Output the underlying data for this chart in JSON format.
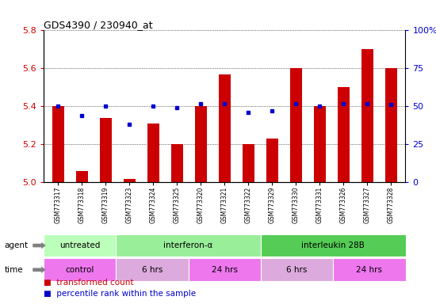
{
  "title": "GDS4390 / 230940_at",
  "samples": [
    "GSM773317",
    "GSM773318",
    "GSM773319",
    "GSM773323",
    "GSM773324",
    "GSM773325",
    "GSM773320",
    "GSM773321",
    "GSM773322",
    "GSM773329",
    "GSM773330",
    "GSM773331",
    "GSM773326",
    "GSM773327",
    "GSM773328"
  ],
  "transformed_count": [
    5.4,
    5.06,
    5.34,
    5.02,
    5.31,
    5.2,
    5.4,
    5.57,
    5.2,
    5.23,
    5.6,
    5.4,
    5.5,
    5.7,
    5.6
  ],
  "percentile_rank": [
    50,
    44,
    50,
    38,
    50,
    49,
    52,
    52,
    46,
    47,
    52,
    50,
    52,
    52,
    51
  ],
  "ylim_left": [
    5.0,
    5.8
  ],
  "ylim_right": [
    0,
    100
  ],
  "yticks_left": [
    5.0,
    5.2,
    5.4,
    5.6,
    5.8
  ],
  "yticks_right": [
    0,
    25,
    50,
    75,
    100
  ],
  "bar_color": "#CC0000",
  "dot_color": "#0000CC",
  "bar_width": 0.5,
  "agent_groups": [
    {
      "label": "untreated",
      "start": 0,
      "end": 3,
      "color": "#bbffbb"
    },
    {
      "label": "interferon-α",
      "start": 3,
      "end": 9,
      "color": "#99ee99"
    },
    {
      "label": "interleukin 28B",
      "start": 9,
      "end": 15,
      "color": "#55cc55"
    }
  ],
  "time_groups": [
    {
      "label": "control",
      "start": 0,
      "end": 3,
      "color": "#ee77ee"
    },
    {
      "label": "6 hrs",
      "start": 3,
      "end": 6,
      "color": "#ddaadd"
    },
    {
      "label": "24 hrs",
      "start": 6,
      "end": 9,
      "color": "#ee77ee"
    },
    {
      "label": "6 hrs",
      "start": 9,
      "end": 12,
      "color": "#ddaadd"
    },
    {
      "label": "24 hrs",
      "start": 12,
      "end": 15,
      "color": "#ee77ee"
    }
  ],
  "axis_label_color_left": "#CC0000",
  "axis_label_color_right": "#0000CC",
  "xtick_bg_color": "#dddddd"
}
